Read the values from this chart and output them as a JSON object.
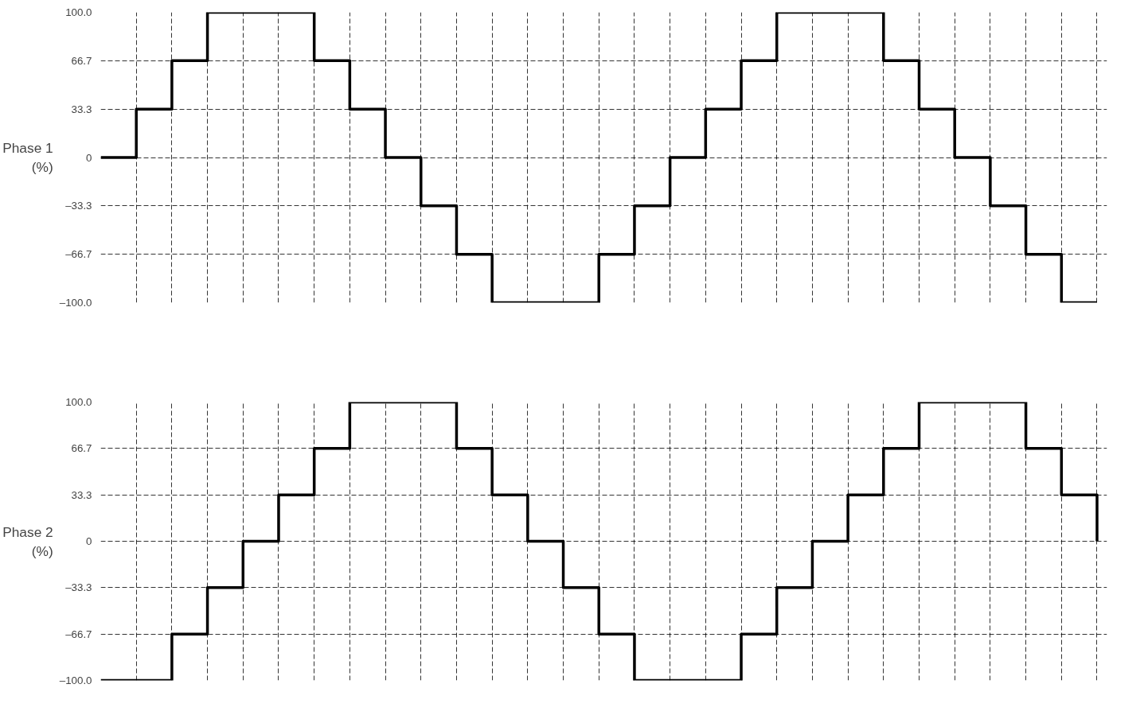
{
  "chart_data": [
    {
      "type": "step",
      "ylabel": "Phase 1\n(%)",
      "categories": [
        null,
        null,
        null,
        null,
        null,
        null,
        null,
        null,
        null,
        null,
        null,
        null,
        null,
        null,
        null,
        null,
        null,
        null,
        null,
        null,
        null,
        null,
        null,
        null,
        null,
        null,
        null,
        null,
        null
      ],
      "series": [
        {
          "color": "#000000",
          "values": [
            0,
            33.3,
            66.7,
            100,
            100,
            100,
            66.7,
            33.3,
            0,
            -33.3,
            -66.7,
            -100,
            -100,
            -100,
            -66.7,
            -33.3,
            0,
            33.3,
            66.7,
            100,
            100,
            100,
            66.7,
            33.3,
            0,
            -33.3,
            -66.7,
            -100,
            -100
          ]
        }
      ],
      "ylim": [
        -100,
        100
      ],
      "yticks": [
        {
          "value": 100,
          "label": "100.0"
        },
        {
          "value": 66.7,
          "label": "66.7"
        },
        {
          "value": 33.3,
          "label": "33.3"
        },
        {
          "value": 0,
          "label": "0"
        },
        {
          "value": -33.3,
          "label": "–33.3"
        },
        {
          "value": -66.7,
          "label": "–66.7"
        },
        {
          "value": -100,
          "label": "–100.0"
        }
      ],
      "grid": true,
      "tick_labels": "y",
      "line_style": "solid",
      "marker": "none"
    },
    {
      "type": "step",
      "ylabel": "Phase 2\n(%)",
      "categories": [
        null,
        null,
        null,
        null,
        null,
        null,
        null,
        null,
        null,
        null,
        null,
        null,
        null,
        null,
        null,
        null,
        null,
        null,
        null,
        null,
        null,
        null,
        null,
        null,
        null,
        null,
        null,
        null,
        null
      ],
      "series": [
        {
          "color": "#000000",
          "values": [
            -100,
            -100,
            -66.7,
            -33.3,
            0,
            33.3,
            66.7,
            100,
            100,
            100,
            66.7,
            33.3,
            0,
            -33.3,
            -66.7,
            -100,
            -100,
            -100,
            -66.7,
            -33.3,
            0,
            33.3,
            66.7,
            100,
            100,
            100,
            66.7,
            33.3,
            0
          ]
        }
      ],
      "ylim": [
        -100,
        100
      ],
      "yticks": [
        {
          "value": 100,
          "label": "100.0"
        },
        {
          "value": 66.7,
          "label": "66.7"
        },
        {
          "value": 33.3,
          "label": "33.3"
        },
        {
          "value": 0,
          "label": "0"
        },
        {
          "value": -33.3,
          "label": "–33.3"
        },
        {
          "value": -66.7,
          "label": "–66.7"
        },
        {
          "value": -100,
          "label": "–100.0"
        }
      ],
      "grid": true,
      "tick_labels": "y",
      "line_style": "solid",
      "marker": "none"
    }
  ]
}
